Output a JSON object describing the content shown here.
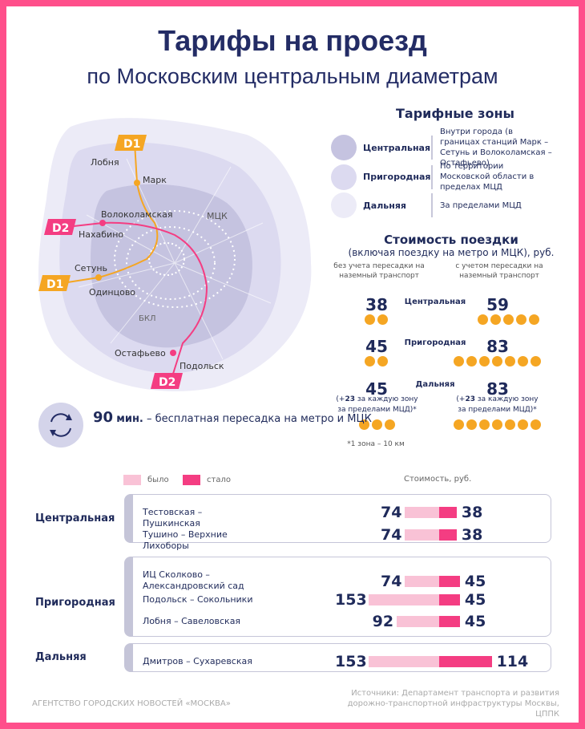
{
  "header": {
    "title": "Тарифы на проезд",
    "subtitle": "по Московским центральным диаметрам"
  },
  "map": {
    "labels": [
      "Лобня",
      "Марк",
      "Волоколамская",
      "Нахабино",
      "МЦК",
      "Сетунь",
      "Одинцово",
      "БКЛ",
      "Остафьево",
      "Подольск"
    ],
    "d1": "D1",
    "d2": "D2"
  },
  "zones": {
    "title": "Тарифные зоны",
    "items": [
      {
        "name": "Центральная",
        "desc": "Внутри города (в границах станций Марк – Сетунь и Волоколамская – Остафьево)",
        "color": "#c5c3e0"
      },
      {
        "name": "Пригородная",
        "desc": "По территории Московской области в пределах МЦД",
        "color": "#dcdaf0"
      },
      {
        "name": "Дальняя",
        "desc": "За пределами МЦД",
        "color": "#ecebf7"
      }
    ]
  },
  "cost": {
    "title": "Стоимость поездки",
    "subtitle": "(включая поездку на метро и МЦК), руб.",
    "col_left": "без учета пересадки на наземный транспорт",
    "col_right": "с учетом пересадки на наземный транспорт",
    "rows": [
      {
        "zone": "Центральная",
        "left": "38",
        "right": "59",
        "left_dots": 2,
        "right_dots": 5
      },
      {
        "zone": "Пригородная",
        "left": "45",
        "right": "83",
        "left_dots": 2,
        "right_dots": 7
      },
      {
        "zone": "Дальняя",
        "left": "45",
        "right": "83",
        "left_dots": 3,
        "right_dots": 7
      }
    ],
    "extra_prefix": "(+",
    "extra_value": "23",
    "extra_suffix": " за каждую зону за пределами МЦД)*",
    "footnote": "*1 зона – 10 км"
  },
  "transfer": {
    "minutes": "90",
    "unit": "мин.",
    "text": "– бесплатная пересадка на метро и МЦК"
  },
  "legend": {
    "was": "было",
    "now": "стало",
    "axis": "Стоимость, руб.",
    "was_color": "#f9c2d6",
    "now_color": "#f43d82"
  },
  "routes": {
    "groups": [
      {
        "label": "Центральная",
        "items": [
          {
            "name": "Тестовская – Пушкинская",
            "old": 74,
            "new": 38
          },
          {
            "name": "Тушино – Верхние Лихоборы",
            "old": 74,
            "new": 38
          }
        ]
      },
      {
        "label": "Пригородная",
        "items": [
          {
            "name": "ИЦ Сколково – Александровский сад",
            "old": 74,
            "new": 45
          },
          {
            "name": "Подольск – Сокольники",
            "old": 153,
            "new": 45
          },
          {
            "name": "Лобня – Савеловская",
            "old": 92,
            "new": 45
          }
        ]
      },
      {
        "label": "Дальняя",
        "items": [
          {
            "name": "Дмитров – Сухаревская",
            "old": 153,
            "new": 114
          }
        ]
      }
    ]
  },
  "footer": {
    "agency": "АГЕНТСТВО ГОРОДСКИХ НОВОСТЕЙ «МОСКВА»",
    "source": "Источники: Департамент транспорта и развития дорожно-транспортной инфраструктуры Москвы, ЦППК"
  }
}
